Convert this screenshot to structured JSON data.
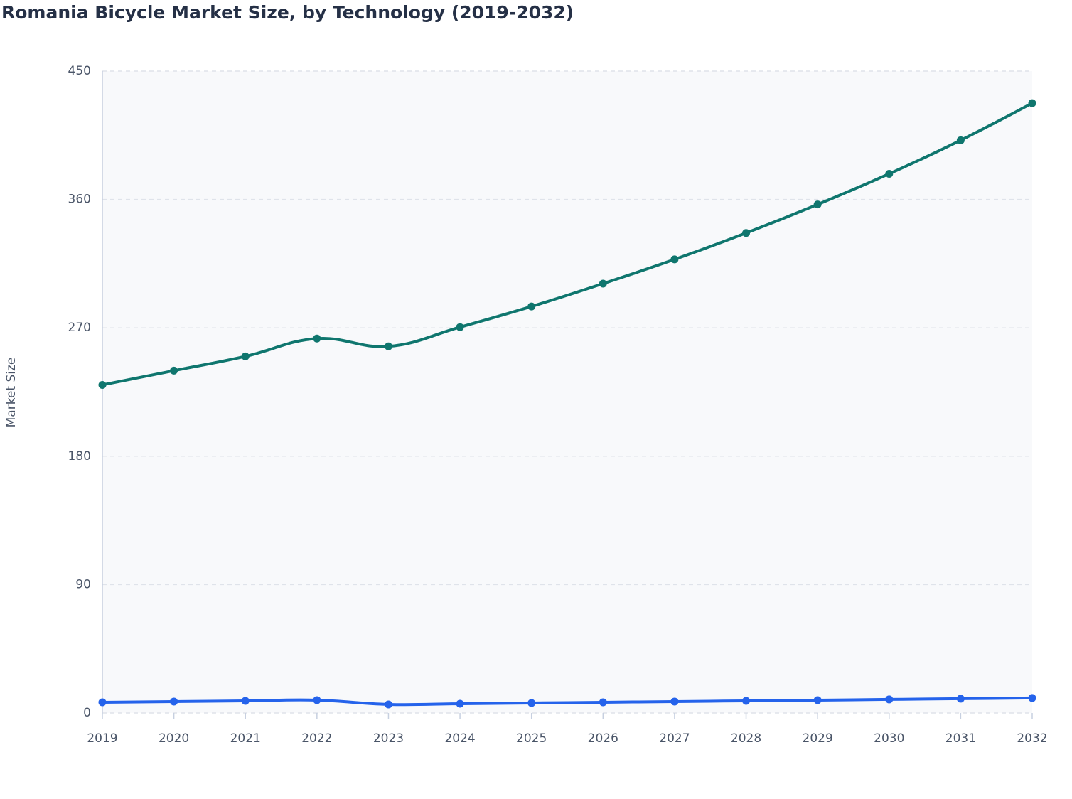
{
  "chart_data": {
    "type": "line",
    "title": "Romania Bicycle Market Size, by Technology (2019-2032)",
    "y_label": "Market Size",
    "categories": [
      "2019",
      "2020",
      "2021",
      "2022",
      "2023",
      "2024",
      "2025",
      "2026",
      "2027",
      "2028",
      "2029",
      "2030",
      "2031",
      "2032"
    ],
    "series": [
      {
        "color": "#0f766e",
        "values": [
          230,
          240,
          250,
          262.5,
          257,
          270.5,
          285,
          301,
          318,
          336.5,
          356.5,
          378,
          401.5,
          427.5
        ]
      },
      {
        "color": "#2563eb",
        "values": [
          7.5,
          8,
          8.5,
          9,
          6,
          6.5,
          7,
          7.5,
          8,
          8.5,
          9,
          9.5,
          10,
          10.5
        ]
      }
    ],
    "ylim": [
      0,
      450
    ],
    "yticks": [
      0,
      90,
      180,
      270,
      360,
      450
    ],
    "grid": true
  }
}
